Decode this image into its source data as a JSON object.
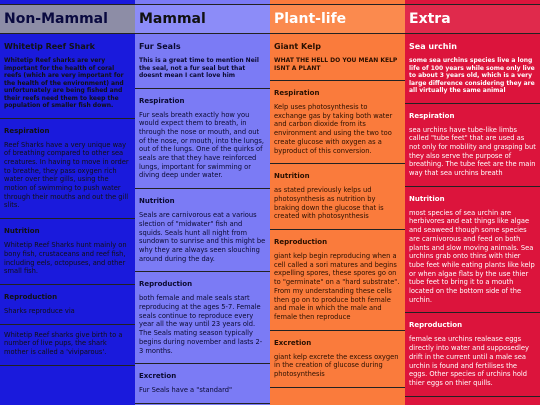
{
  "columns": [
    {
      "title": "Non-Mammal",
      "subtitle": "Whitetip Reef Shark",
      "intro": "Whitetip Reef sharks are very important for the health of coral reefs (which are very important for the health of the environment) and unfortunately are being fished and their reefs need them to keep the population of smaller fish down.",
      "sections": [
        {
          "heading": "Respiration",
          "text": "Reef Sharks have a very unique way of breathing compared to other sea creatures. In having to move in order to breathe, they pass oxygen rich water over their gills, using the motion of swimming to push water through their mouths and out the gill slits."
        },
        {
          "heading": "Nutrition",
          "text": "Whitetip Reef Sharks hunt mainly on bony fish, crustaceans and reef fish, including eels, octopuses, and other small fish."
        },
        {
          "heading": "Reproduction",
          "text": "Sharks reproduce via"
        },
        {
          "heading": "",
          "text": "Whitetip Reef sharks give birth to a number of live pups, the shark mother is called a 'viviparous'."
        }
      ]
    },
    {
      "title": "Mammal",
      "subtitle": "Fur Seals",
      "intro": "This is a great time to mention Neil the seal, not a fur seal but that doesnt mean I cant love him",
      "sections": [
        {
          "heading": "Respiration",
          "text": "Fur seals breath exactly how you would expect them to breath, in through the nose or mouth, and out of the nose, or mouth, into the lungs, out of the lungs. One of the quirks of seals are that they have reinforced lungs, important for swimming or diving deep under water."
        },
        {
          "heading": "Nutrition",
          "text": "Seals are carnivorous eat a various slection of \"midwater\" fish and squids. Seals hunt all night from sundown to sunrise and this might be why they are always seen slouching around during the day."
        },
        {
          "heading": "Reproduction",
          "text": "both female and male seals start reproducing at the ages 5-7. Female seals continue to reproduce every year all the way until 23 years old. The Seals mating season typically begins during november and lasts 2-3 months."
        },
        {
          "heading": "Excretion",
          "text": "Fur Seals have a \"standard\""
        }
      ]
    },
    {
      "title": "Plant-life",
      "subtitle": "Giant Kelp",
      "intro": "WHAT THE HELL DO YOU MEAN KELP ISNT A PLANT",
      "sections": [
        {
          "heading": "Respiration",
          "text": "Kelp uses photosynthesis to exchange gas by taking both water and carbon dioxide from its environment and using the two too create glucose with oxygen as a byproduct of this conversion."
        },
        {
          "heading": "Nutrition",
          "text": "as stated previously kelps ud photosynthesis as nutrition by braking down the glucose that is created with photosynthesis"
        },
        {
          "heading": "Reproduction",
          "text": "giant kelp begin reproducing when a cell called a sori matures and begins expelling spores, these spores go on to \"germinate\" on a \"hard substrate\". From my understanding these cells then go on to produce both female and male in which the male and female then reproduce"
        },
        {
          "heading": "Excretion",
          "text": "giant kelp excrete the excess oxygen in the creation of glucose during photosynthesis"
        }
      ]
    },
    {
      "title": "Extra",
      "subtitle": "Sea urchin",
      "intro": "some sea urchins species live a long life of 100 years while some only live to about 3 years old, which is a very large difference considering they are all virtually the same animal",
      "sections": [
        {
          "heading": "Respiration",
          "text": "sea urchins have tube-like limbs called \"tube feet\" that are used as not only for mobility and grasping but they also serve the purpose of breathing. The tube feet are the main way that sea urchins breath"
        },
        {
          "heading": "Nutrition",
          "text": "most species of sea urchin are herbivores and eat things like algae and seaweed though some species are carnivorous and feed on both plants and slow moving animals. Sea urchins grab onto thins with thier tube feet while eating plants like kelp or when algae flats by the use thier tube feet to bring it to a mouth located on the bottom side of the urchin."
        },
        {
          "heading": "Reproduction",
          "text": "female sea urchins realease eggs directly into water and supposedley drift in the current until a male sea urchin is found and fertilises the eggs. Other species of urchins hold thier eggs on thier quills."
        }
      ]
    }
  ]
}
